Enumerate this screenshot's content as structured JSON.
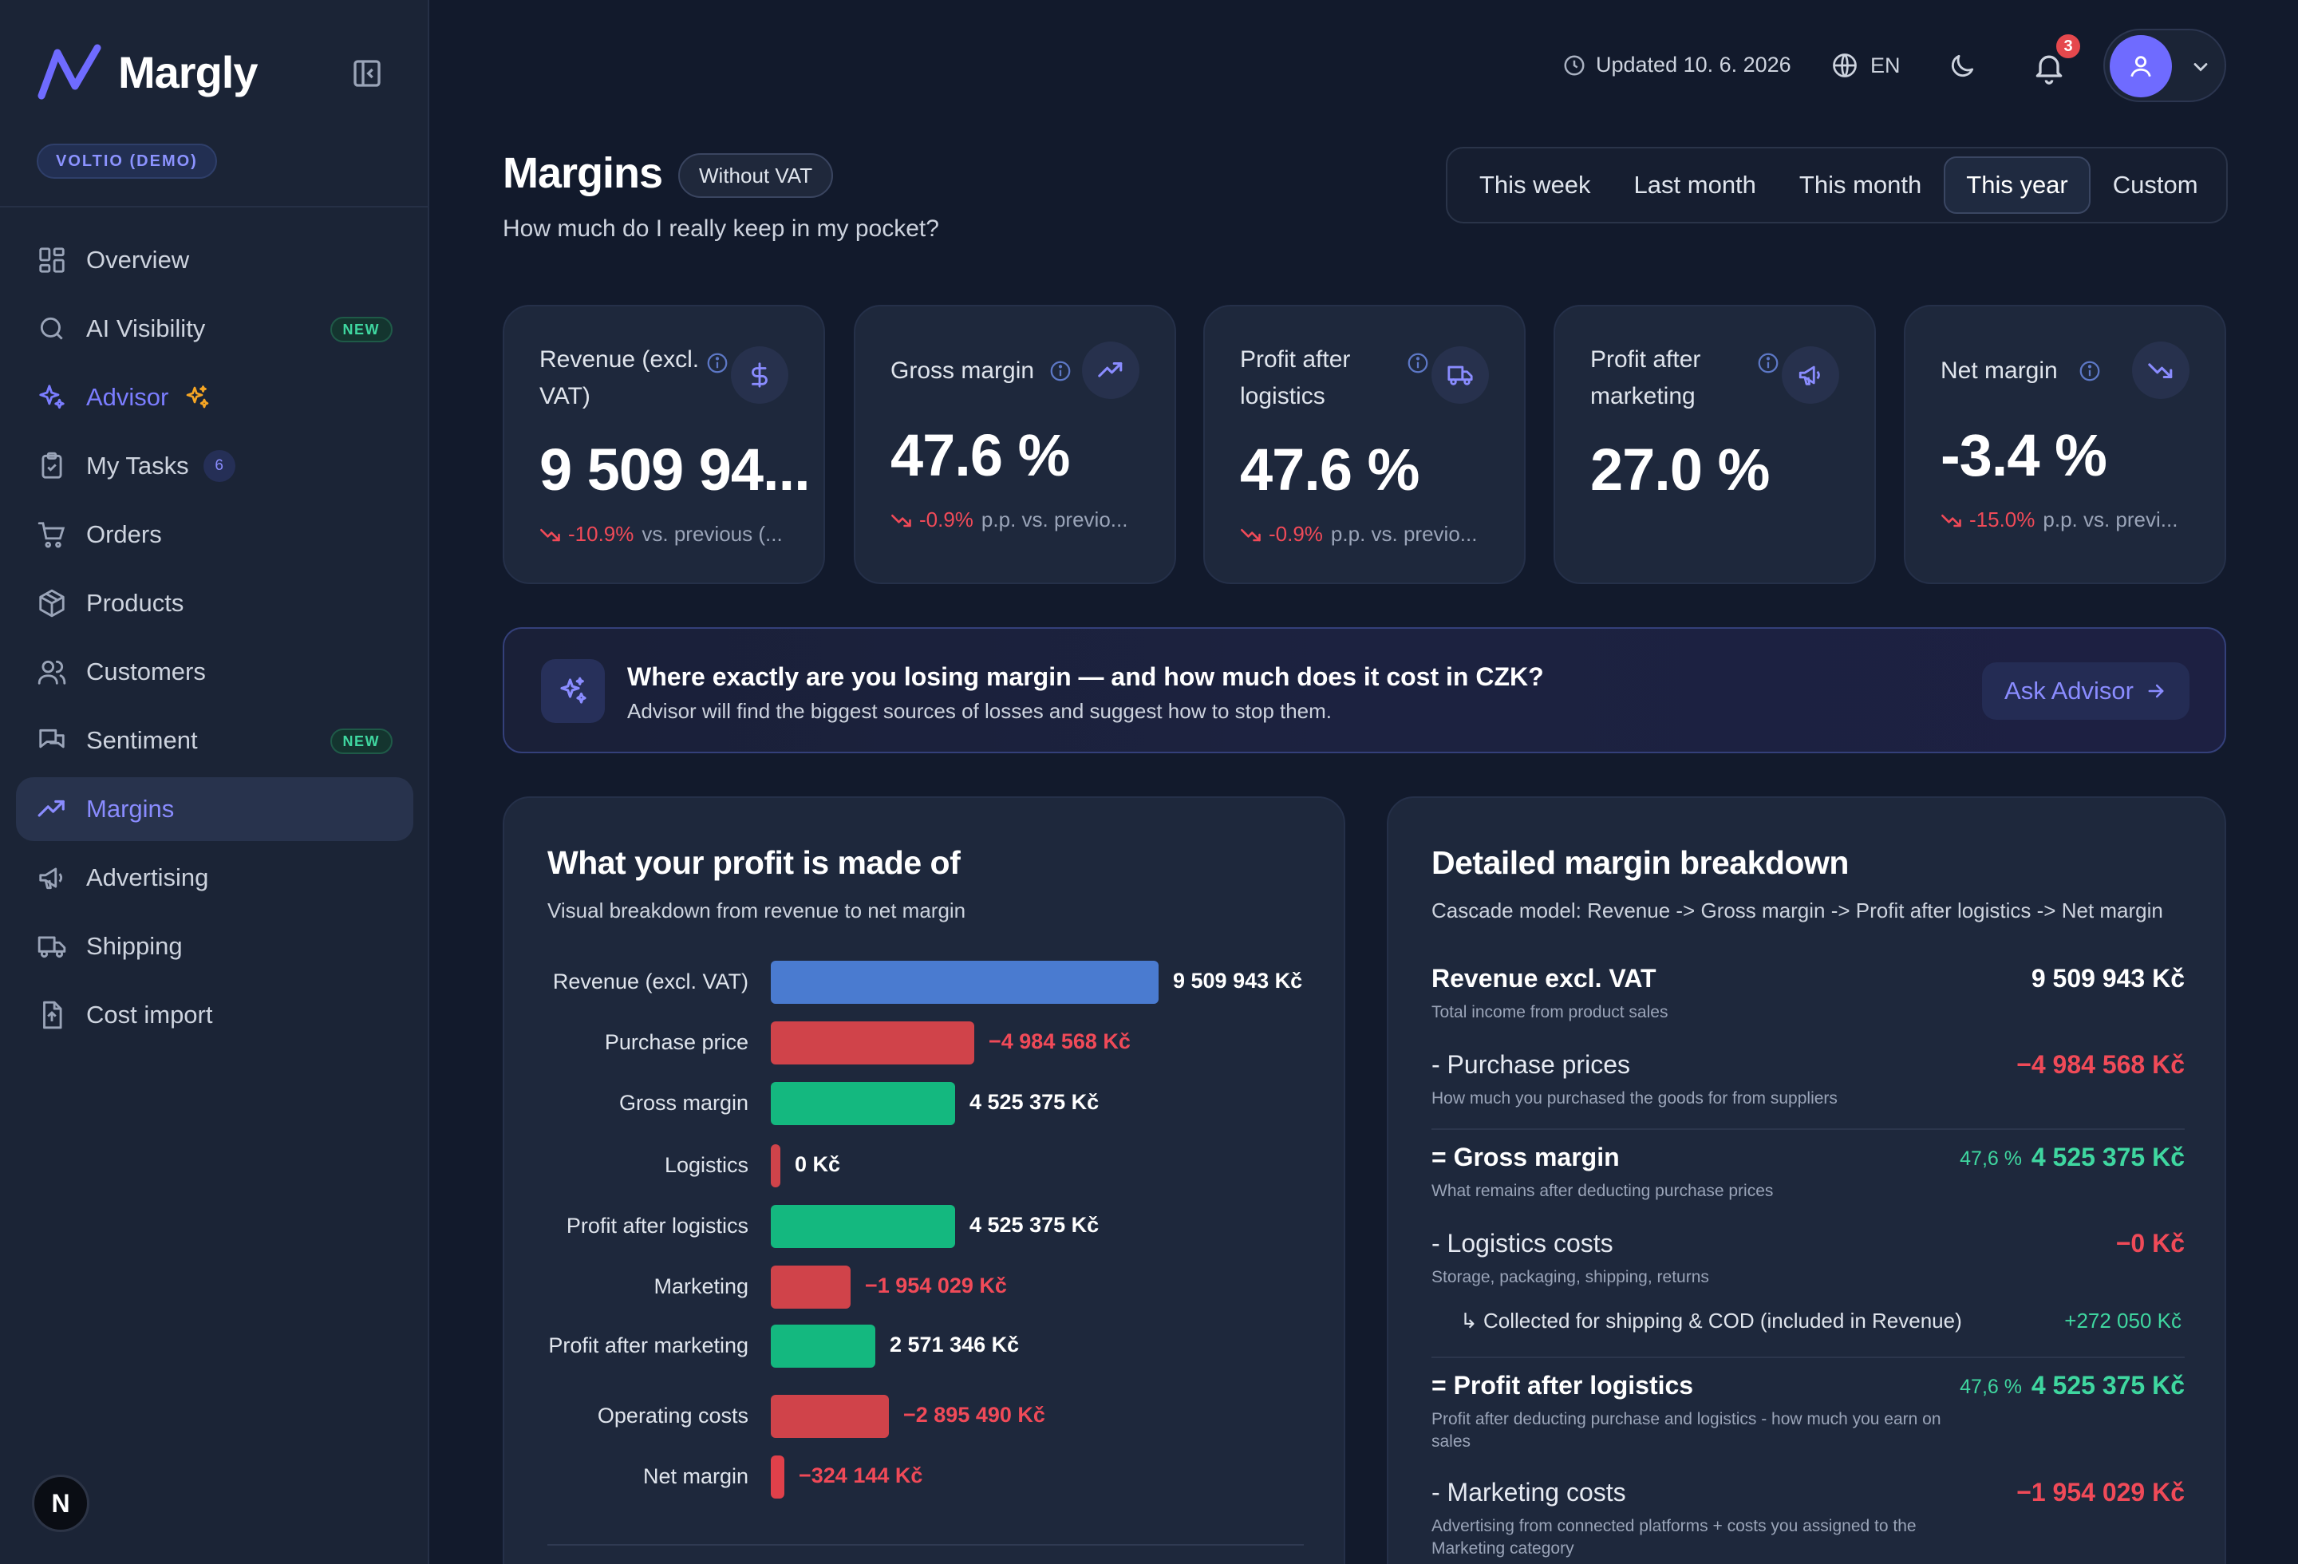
{
  "app": {
    "name": "Margly",
    "workspace": "VOLTIO (DEMO)"
  },
  "sidebar": {
    "items": [
      {
        "label": "Overview"
      },
      {
        "label": "AI Visibility",
        "badge": "NEW"
      },
      {
        "label": "Advisor"
      },
      {
        "label": "My Tasks",
        "count": "6"
      },
      {
        "label": "Orders"
      },
      {
        "label": "Products"
      },
      {
        "label": "Customers"
      },
      {
        "label": "Sentiment",
        "badge": "NEW"
      },
      {
        "label": "Margins"
      },
      {
        "label": "Advertising"
      },
      {
        "label": "Shipping"
      },
      {
        "label": "Cost import"
      }
    ],
    "bottom_avatar": "N"
  },
  "topbar": {
    "updated": "Updated 10. 6. 2026",
    "language": "EN",
    "notifications": "3"
  },
  "page": {
    "title": "Margins",
    "vat_chip": "Without VAT",
    "subtitle": "How much do I really keep in my pocket?",
    "periods": [
      "This week",
      "Last month",
      "This month",
      "This year",
      "Custom"
    ],
    "active_period": "This year"
  },
  "kpis": [
    {
      "label": "Revenue (excl. VAT)",
      "value": "9 509 94...",
      "delta": "-10.9%",
      "delta_text": "vs. previous (...",
      "icon": "dollar-icon"
    },
    {
      "label": "Gross margin",
      "value": "47.6 %",
      "delta": "-0.9%",
      "delta_text": "p.p. vs. previo...",
      "icon": "trending-up-icon"
    },
    {
      "label": "Profit after logistics",
      "value": "47.6 %",
      "delta": "-0.9%",
      "delta_text": "p.p. vs. previo...",
      "icon": "truck-icon"
    },
    {
      "label": "Profit after marketing",
      "value": "27.0 %",
      "icon": "megaphone-icon"
    },
    {
      "label": "Net margin",
      "value": "-3.4 %",
      "delta": "-15.0%",
      "delta_text": "p.p. vs. previ...",
      "icon": "trending-down-icon"
    }
  ],
  "advisor": {
    "title": "Where exactly are you losing margin — and how much does it cost in CZK?",
    "subtitle": "Advisor will find the biggest sources of losses and suggest how to stop them.",
    "button": "Ask Advisor"
  },
  "profit_chart": {
    "title": "What your profit is made of",
    "subtitle": "Visual breakdown from revenue to net margin"
  },
  "chart_data": {
    "type": "bar",
    "orientation": "horizontal",
    "title": "What your profit is made of",
    "subtitle": "Visual breakdown from revenue to net margin",
    "categories": [
      "Revenue (excl. VAT)",
      "Purchase price",
      "Gross margin",
      "Logistics",
      "Profit after logistics",
      "Marketing",
      "Profit after marketing",
      "Operating costs",
      "Net margin"
    ],
    "values": [
      9509943,
      -4984568,
      4525375,
      0,
      4525375,
      -1954029,
      2571346,
      -2895490,
      -324144
    ],
    "value_labels": [
      "9 509 943 Kč",
      "−4 984 568 Kč",
      "4 525 375 Kč",
      "0 Kč",
      "4 525 375 Kč",
      "−1 954 029 Kč",
      "2 571 346 Kč",
      "−2 895 490 Kč",
      "−324 144 Kč"
    ],
    "colors": [
      "#4a7bd0",
      "#d0434a",
      "#14b87f",
      "#d0434a",
      "#14b87f",
      "#d0434a",
      "#14b87f",
      "#d0434a",
      "#e0404a"
    ]
  },
  "breakdown": {
    "title": "Detailed margin breakdown",
    "subtitle": "Cascade model: Revenue -> Gross margin -> Profit after logistics -> Net margin",
    "rows": [
      {
        "title": "Revenue excl. VAT",
        "desc": "Total income from product sales",
        "value": "9 509 943 Kč"
      },
      {
        "title": "- Purchase prices",
        "desc": "How much you purchased the goods for from suppliers",
        "value": "−4 984 568 Kč"
      },
      {
        "title": "= Gross margin",
        "desc": "What remains after deducting purchase prices",
        "pct": "47,6 %",
        "value": "4 525 375 Kč"
      },
      {
        "title": "- Logistics costs",
        "desc": "Storage, packaging, shipping, returns",
        "value": "−0 Kč"
      },
      {
        "title": "= Profit after logistics",
        "desc": "Profit after deducting purchase and logistics - how much you earn on sales",
        "pct": "47,6 %",
        "value": "4 525 375 Kč"
      },
      {
        "title": "- Marketing costs",
        "desc": "Advertising from connected platforms + costs you assigned to the Marketing category",
        "value": "−1 954 029 Kč"
      }
    ],
    "sub_row": {
      "label": "↳ Collected for shipping & COD (included in Revenue)",
      "value": "+272 050 Kč"
    }
  }
}
